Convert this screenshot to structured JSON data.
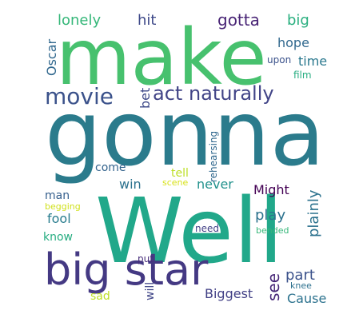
{
  "words": [
    {
      "text": "gonna",
      "color": "#2b7b8c"
    },
    {
      "text": "Well",
      "color": "#21a88a"
    },
    {
      "text": "make",
      "color": "#47c16e"
    },
    {
      "text": "big star",
      "color": "#443983"
    },
    {
      "text": "movie",
      "color": "#3b528b"
    },
    {
      "text": "act naturally",
      "color": "#414487"
    },
    {
      "text": "gotta",
      "color": "#482475"
    },
    {
      "text": "hit",
      "color": "#3e4989"
    },
    {
      "text": "lonely",
      "color": "#35b779"
    },
    {
      "text": "big",
      "color": "#29af7f"
    },
    {
      "text": "Oscar",
      "color": "#31688e"
    },
    {
      "text": "hope",
      "color": "#31688e"
    },
    {
      "text": "upon",
      "color": "#3b528b"
    },
    {
      "text": "time",
      "color": "#2a788e"
    },
    {
      "text": "film",
      "color": "#27ad81"
    },
    {
      "text": "bet",
      "color": "#3e4989"
    },
    {
      "text": "rehearsing",
      "color": "#31688e"
    },
    {
      "text": "come",
      "color": "#33638d"
    },
    {
      "text": "tell",
      "color": "#bddf26"
    },
    {
      "text": "scene",
      "color": "#d8e219"
    },
    {
      "text": "win",
      "color": "#2c728e"
    },
    {
      "text": "never",
      "color": "#21918c"
    },
    {
      "text": "Might",
      "color": "#440154"
    },
    {
      "text": "man",
      "color": "#355f8d"
    },
    {
      "text": "begging",
      "color": "#d0e11c"
    },
    {
      "text": "fool",
      "color": "#287c8e"
    },
    {
      "text": "play",
      "color": "#2c728e"
    },
    {
      "text": "plainly",
      "color": "#2c728e"
    },
    {
      "text": "know",
      "color": "#27ad81"
    },
    {
      "text": "need",
      "color": "#424086"
    },
    {
      "text": "bended",
      "color": "#35b779"
    },
    {
      "text": "part",
      "color": "#3b528b"
    },
    {
      "text": "see",
      "color": "#482878"
    },
    {
      "text": "put",
      "color": "#472d7b"
    },
    {
      "text": "knee",
      "color": "#2d708e"
    },
    {
      "text": "will",
      "color": "#404688"
    },
    {
      "text": "Biggest",
      "color": "#424086"
    },
    {
      "text": "sad",
      "color": "#bddf26"
    },
    {
      "text": "Cause",
      "color": "#2c728e"
    }
  ]
}
